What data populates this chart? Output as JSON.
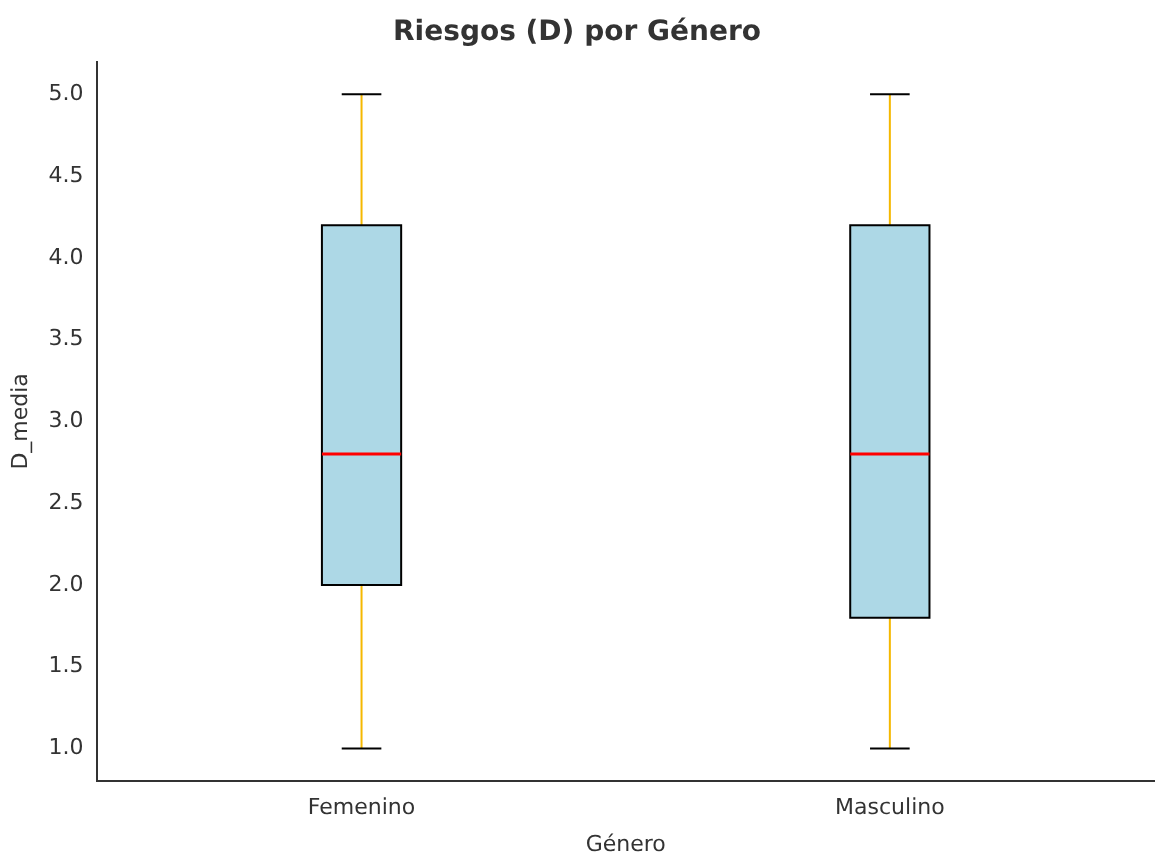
{
  "chart_data": {
    "type": "box",
    "title": "Riesgos (D) por Género",
    "xlabel": "Género",
    "ylabel": "D_media",
    "categories": [
      "Femenino",
      "Masculino"
    ],
    "series": [
      {
        "color": "#add8e6",
        "boxes": [
          {
            "low": 1.0,
            "q1": 2.0,
            "median": 2.8,
            "q3": 4.2,
            "high": 5.0
          },
          {
            "low": 1.0,
            "q1": 1.8,
            "median": 2.8,
            "q3": 4.2,
            "high": 5.0
          }
        ]
      }
    ],
    "ylim": [
      0.8,
      5.2
    ],
    "yticks": [
      {
        "value": 1,
        "label": "1.0"
      },
      {
        "value": 1.5,
        "label": "1.5"
      },
      {
        "value": 2,
        "label": "2.0"
      },
      {
        "value": 2.5,
        "label": "2.5"
      },
      {
        "value": 3,
        "label": "3.0"
      },
      {
        "value": 3.5,
        "label": "3.5"
      },
      {
        "value": 4,
        "label": "4.0"
      },
      {
        "value": 4.5,
        "label": "4.5"
      },
      {
        "value": 5,
        "label": "5.0"
      }
    ],
    "grid": false,
    "legend": false
  }
}
